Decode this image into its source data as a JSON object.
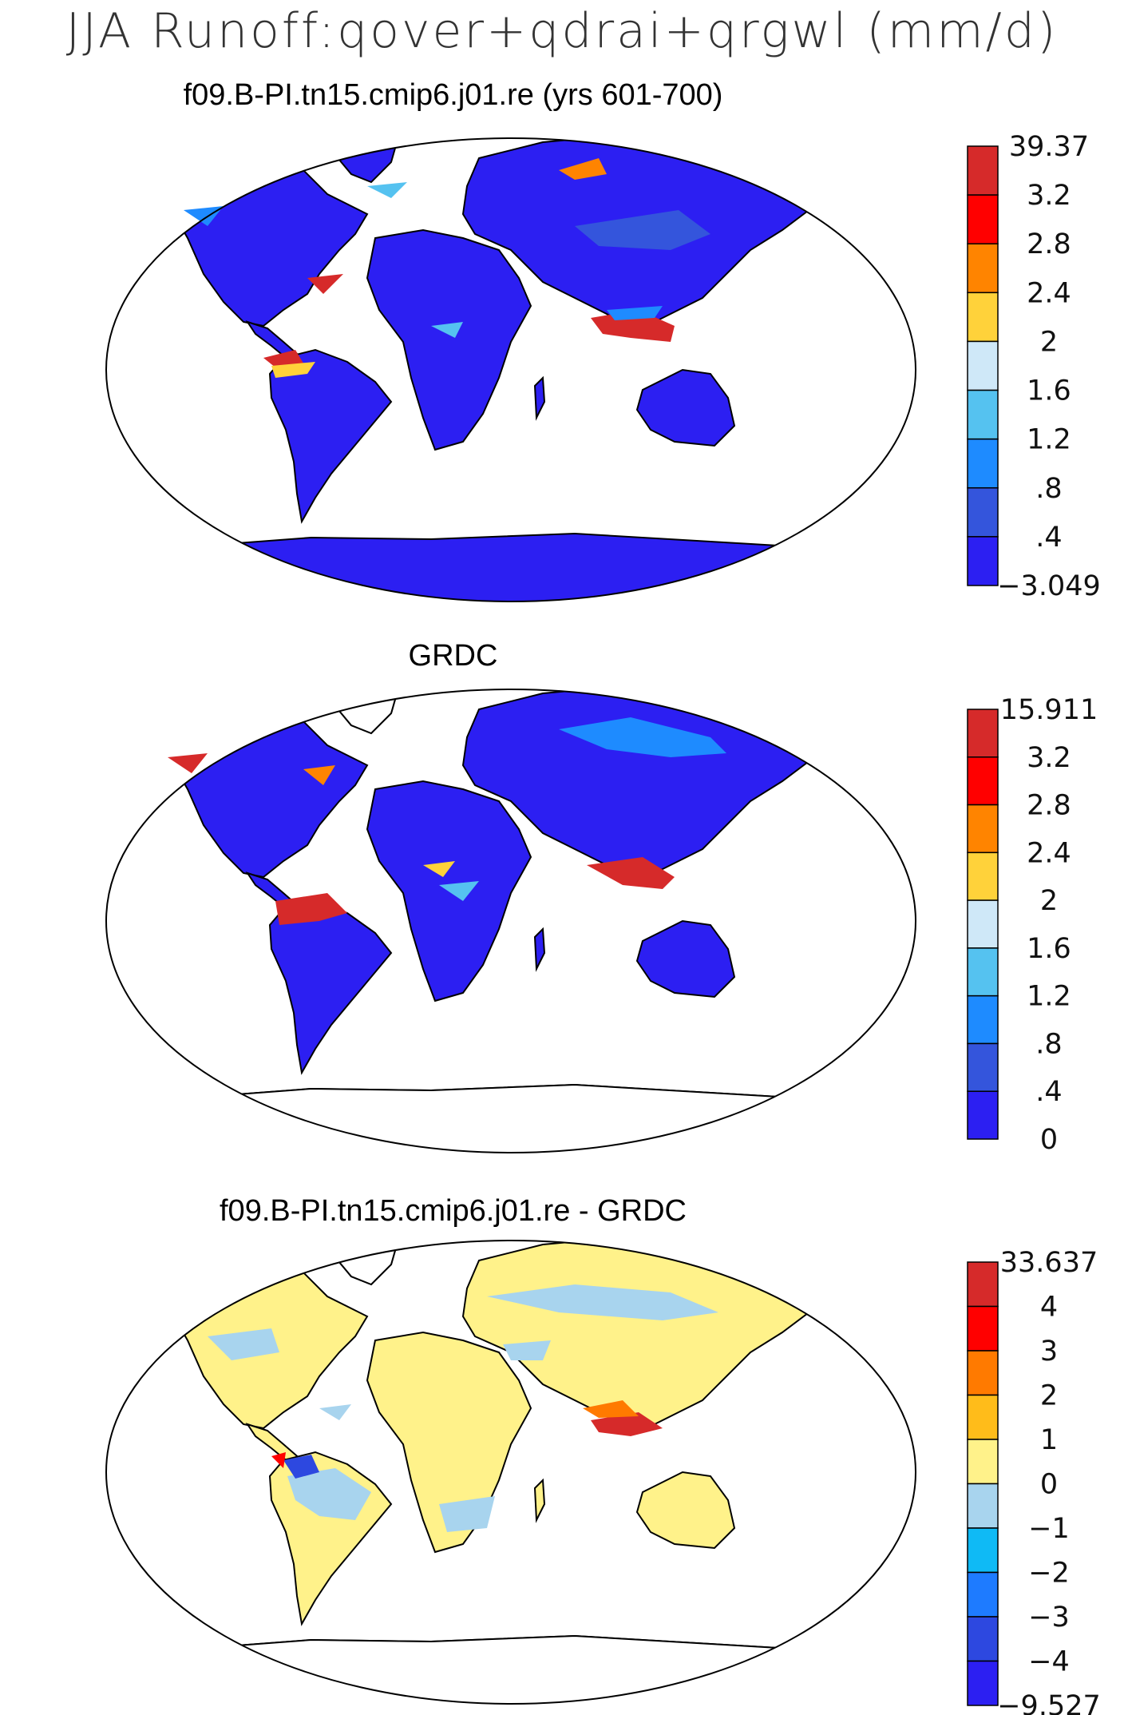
{
  "figure": {
    "title": "JJA Runoff:qover+qdrai+qrgwl (mm/d)"
  },
  "panels": [
    {
      "title": "f09.B-PI.tn15.cmip6.j01.re (yrs 601-700)",
      "colorbar": {
        "labels": [
          "39.37",
          "3.2",
          "2.8",
          "2.4",
          "2",
          "1.6",
          "1.2",
          ".8",
          ".4",
          "−3.049"
        ],
        "colors": [
          "#d62a2a",
          "#ff0000",
          "#ff8400",
          "#ffd23a",
          "#cfe8f8",
          "#55c2f0",
          "#1e8bff",
          "#3455dc",
          "#2c1ff2"
        ]
      }
    },
    {
      "title": "GRDC",
      "colorbar": {
        "labels": [
          "15.911",
          "3.2",
          "2.8",
          "2.4",
          "2",
          "1.6",
          "1.2",
          ".8",
          ".4",
          "0"
        ],
        "colors": [
          "#d62a2a",
          "#ff0000",
          "#ff8400",
          "#ffd23a",
          "#cfe8f8",
          "#55c2f0",
          "#1e8bff",
          "#3455dc",
          "#2c1ff2"
        ]
      }
    },
    {
      "title": "f09.B-PI.tn15.cmip6.j01.re - GRDC",
      "colorbar": {
        "labels": [
          "33.637",
          "4",
          "3",
          "2",
          "1",
          "0",
          "−1",
          "−2",
          "−3",
          "−4",
          "−9.527"
        ],
        "colors": [
          "#d62a2a",
          "#ff0000",
          "#ff7a00",
          "#ffbc1a",
          "#fff28a",
          "#a8d4ee",
          "#0fbaf5",
          "#1e7bff",
          "#2d48e0",
          "#2c1ff2"
        ]
      }
    }
  ]
}
